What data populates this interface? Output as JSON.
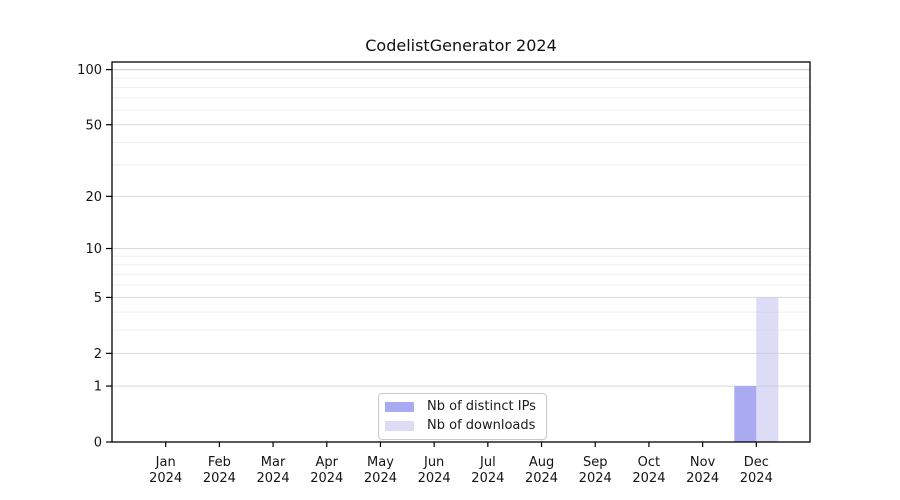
{
  "title": "CodelistGenerator 2024",
  "colors": {
    "axis": "#000000",
    "grid_major": "#d9d9d9",
    "grid_minor": "#efefef",
    "grid_top": "#c8c8c8",
    "tick_label": "#141414",
    "legend_border": "#c9c9c9",
    "distinct_ips_bar": "#9b9bf0",
    "downloads_bar": "#c5c5f2"
  },
  "legend": {
    "items": [
      {
        "label": "Nb of distinct IPs"
      },
      {
        "label": "Nb of downloads"
      }
    ]
  },
  "chart_data": {
    "type": "bar",
    "title": "CodelistGenerator 2024",
    "categories": [
      {
        "month": "Jan",
        "year": "2024"
      },
      {
        "month": "Feb",
        "year": "2024"
      },
      {
        "month": "Mar",
        "year": "2024"
      },
      {
        "month": "Apr",
        "year": "2024"
      },
      {
        "month": "May",
        "year": "2024"
      },
      {
        "month": "Jun",
        "year": "2024"
      },
      {
        "month": "Jul",
        "year": "2024"
      },
      {
        "month": "Aug",
        "year": "2024"
      },
      {
        "month": "Sep",
        "year": "2024"
      },
      {
        "month": "Oct",
        "year": "2024"
      },
      {
        "month": "Nov",
        "year": "2024"
      },
      {
        "month": "Dec",
        "year": "2024"
      }
    ],
    "series": [
      {
        "name": "Nb of distinct IPs",
        "color": "#9b9bf0",
        "fill_opacity": 0.85,
        "values": [
          0,
          0,
          0,
          0,
          0,
          0,
          0,
          0,
          0,
          0,
          0,
          1
        ]
      },
      {
        "name": "Nb of downloads",
        "color": "#c5c5f2",
        "fill_opacity": 0.6,
        "values": [
          0,
          0,
          0,
          0,
          0,
          0,
          0,
          0,
          0,
          0,
          0,
          5
        ]
      }
    ],
    "yscale": "log1p",
    "ylim": [
      0,
      110
    ],
    "yticks_major": [
      0,
      1,
      2,
      5,
      10,
      20,
      50,
      100
    ],
    "yticks_minor": [
      3,
      4,
      6,
      7,
      8,
      9,
      30,
      40,
      60,
      70,
      80,
      90
    ],
    "grid": true,
    "legend_position": "bottom-center-inside"
  }
}
